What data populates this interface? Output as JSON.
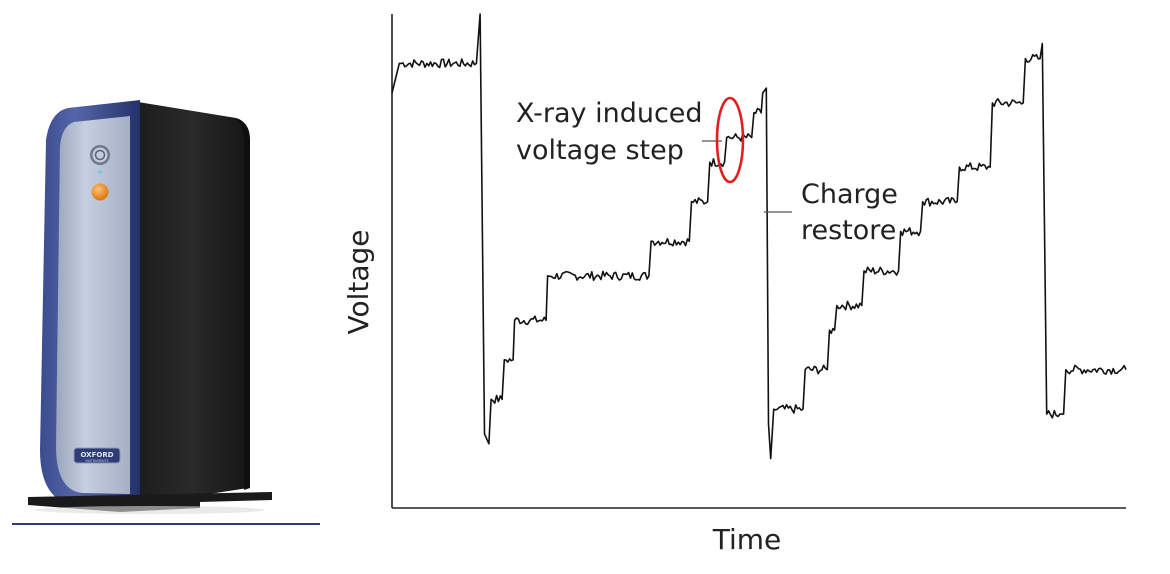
{
  "device": {
    "logo_text": "OXFORD",
    "logo_subtext": "INSTRUMENTS",
    "colors": {
      "frame": "#2e3d7a",
      "frame_highlight": "#5566a8",
      "front_panel": "#b8c2d6",
      "body": "#222222",
      "power_button": "#8a93a6",
      "indicator": "#f08a1c",
      "base": "#1a1a1a",
      "underline": "#2e3d7a"
    },
    "icons": {
      "power": "power-button-icon",
      "indicator": "orange-indicator-icon"
    }
  },
  "chart_data": {
    "type": "line",
    "title": "",
    "xlabel": "Time",
    "ylabel": "Voltage",
    "xlim": [
      0,
      100
    ],
    "ylim": [
      0,
      100
    ],
    "grid": false,
    "series": [
      {
        "values": [
          [
            0,
            84
          ],
          [
            1,
            90
          ],
          [
            11.5,
            90
          ],
          [
            12,
            100
          ],
          [
            12.6,
            15
          ],
          [
            13.2,
            13
          ],
          [
            13.5,
            22
          ],
          [
            15,
            22
          ],
          [
            15.3,
            30
          ],
          [
            16.5,
            30
          ],
          [
            16.7,
            38
          ],
          [
            21,
            38
          ],
          [
            21.2,
            47
          ],
          [
            35,
            47
          ],
          [
            35.3,
            54
          ],
          [
            40.5,
            54
          ],
          [
            40.8,
            62
          ],
          [
            43,
            62
          ],
          [
            43.3,
            70
          ],
          [
            45.3,
            70
          ],
          [
            45.6,
            75
          ],
          [
            49,
            75
          ],
          [
            49.3,
            80
          ],
          [
            50.3,
            80
          ],
          [
            50.5,
            84
          ],
          [
            51,
            85
          ],
          [
            51.3,
            17
          ],
          [
            51.6,
            10
          ],
          [
            52,
            20
          ],
          [
            56,
            20
          ],
          [
            56.3,
            28
          ],
          [
            59.3,
            28
          ],
          [
            59.6,
            36
          ],
          [
            60.3,
            36
          ],
          [
            60.6,
            41
          ],
          [
            64,
            41
          ],
          [
            64.3,
            48
          ],
          [
            69,
            48
          ],
          [
            69.3,
            56
          ],
          [
            72,
            56
          ],
          [
            72.3,
            62
          ],
          [
            77,
            62
          ],
          [
            77.3,
            69
          ],
          [
            81.5,
            69
          ],
          [
            81.8,
            82
          ],
          [
            86,
            82
          ],
          [
            86.3,
            91
          ],
          [
            88.3,
            91
          ],
          [
            88.6,
            94
          ],
          [
            89.2,
            19
          ],
          [
            91,
            19
          ],
          [
            91.5,
            19
          ],
          [
            91.8,
            28
          ],
          [
            100,
            28
          ]
        ]
      }
    ],
    "annotations": [
      {
        "text": "X-ray induced voltage step",
        "lines": [
          "X-ray induced",
          "voltage step"
        ],
        "style": "red-ellipse-highlight",
        "color": "#e02020"
      },
      {
        "text": "Charge restore",
        "lines": [
          "Charge",
          "restore"
        ],
        "style": "leader-line"
      }
    ],
    "line_color": "#111111"
  }
}
